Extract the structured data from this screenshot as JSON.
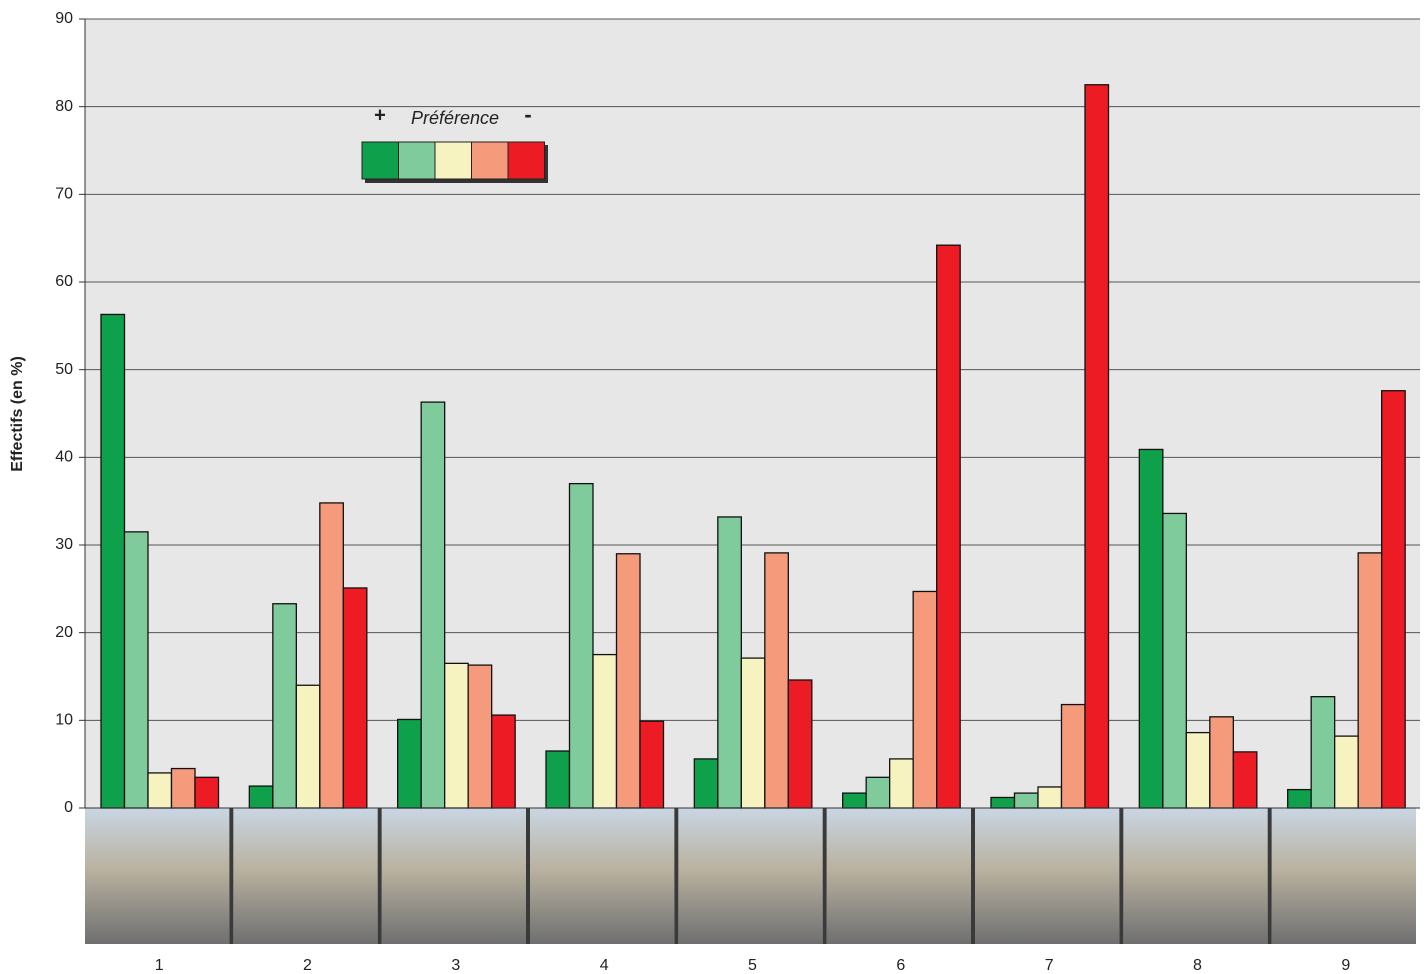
{
  "chart_data": {
    "type": "bar",
    "ylabel": "Effectifs (en %)",
    "legend_plus": "+",
    "legend_title": "Préférence",
    "legend_minus": "-",
    "categories": [
      "1",
      "2",
      "3",
      "4",
      "5",
      "6",
      "7",
      "8",
      "9"
    ],
    "series": [
      {
        "color": "#0fa04b",
        "values": [
          56.3,
          2.5,
          10.1,
          6.5,
          5.6,
          1.7,
          1.2,
          40.9,
          2.1
        ]
      },
      {
        "color": "#80cb9b",
        "values": [
          31.5,
          23.3,
          46.3,
          37.0,
          33.2,
          3.5,
          1.7,
          33.6,
          12.7
        ]
      },
      {
        "color": "#f6f3c1",
        "values": [
          4.0,
          14.0,
          16.5,
          17.5,
          17.1,
          5.6,
          2.4,
          8.6,
          8.2
        ]
      },
      {
        "color": "#f59a7b",
        "values": [
          4.5,
          34.8,
          16.3,
          29.0,
          29.1,
          24.7,
          11.8,
          10.4,
          29.1
        ]
      },
      {
        "color": "#ed1c24",
        "values": [
          3.5,
          25.1,
          10.6,
          9.9,
          14.6,
          64.2,
          82.5,
          6.4,
          47.6
        ]
      }
    ],
    "ylim": [
      0,
      90
    ],
    "yticks": [
      0,
      10,
      20,
      30,
      40,
      50,
      60,
      70,
      80,
      90
    ],
    "grid": true
  }
}
